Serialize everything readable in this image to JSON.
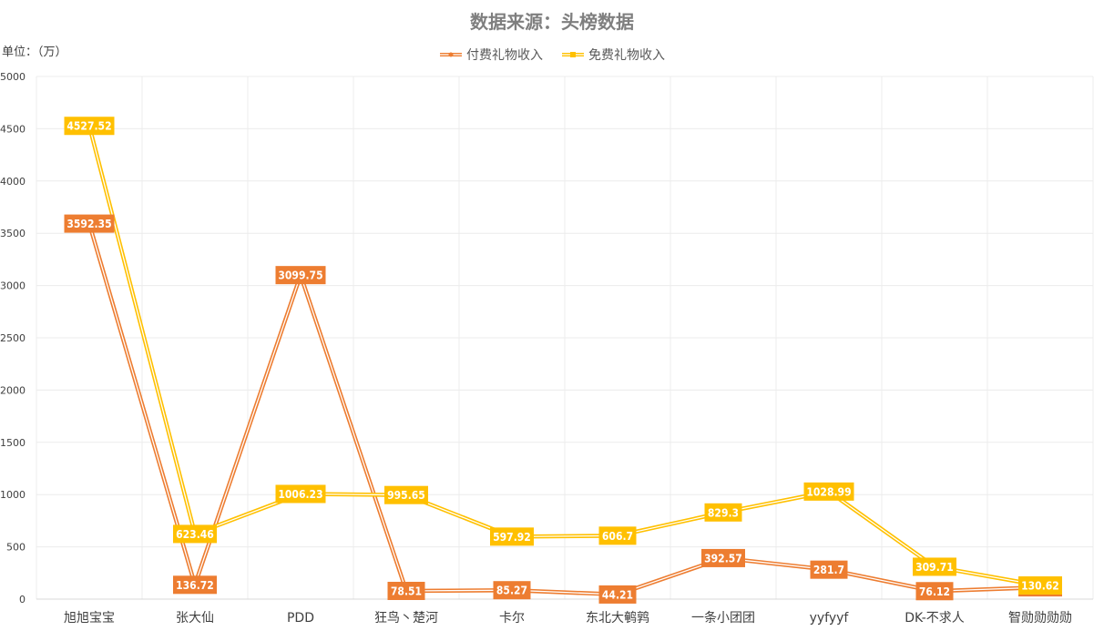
{
  "chart_data": {
    "type": "line",
    "title": "数据来源：头榜数据",
    "unit": "单位：（万）",
    "categories": [
      "旭旭宝宝",
      "张大仙",
      "PDD",
      "狂鸟丶楚河",
      "卡尔",
      "东北大鹌鹑",
      "一条小团团",
      "yyfyyf",
      "DK-不求人",
      "智勋勋勋勋"
    ],
    "series": [
      {
        "name": "付费礼物收入",
        "color": "#ed7d31",
        "values": [
          3592.35,
          136.72,
          3099.75,
          78.51,
          85.27,
          44.21,
          392.57,
          281.7,
          76.12,
          112.49
        ],
        "labels": [
          "3592.35",
          "136.72",
          "3099.75",
          "78.51",
          "85.27",
          "44.21",
          "392.57",
          "281.7",
          "76.12",
          "112.49"
        ]
      },
      {
        "name": "免费礼物收入",
        "color": "#ffc000",
        "values": [
          4527.52,
          623.46,
          1006.23,
          995.65,
          597.92,
          606.7,
          829.3,
          1028.99,
          309.71,
          130.62
        ],
        "labels": [
          "4527.52",
          "623.46",
          "1006.23",
          "995.65",
          "597.92",
          "606.7",
          "829.3",
          "1028.99",
          "309.71",
          "130.62"
        ]
      }
    ],
    "ylim": [
      0,
      5000
    ],
    "yticks": [
      0,
      500,
      1000,
      1500,
      2000,
      2500,
      3000,
      3500,
      4000,
      4500,
      5000
    ],
    "grid": true,
    "legend_position": "top"
  }
}
